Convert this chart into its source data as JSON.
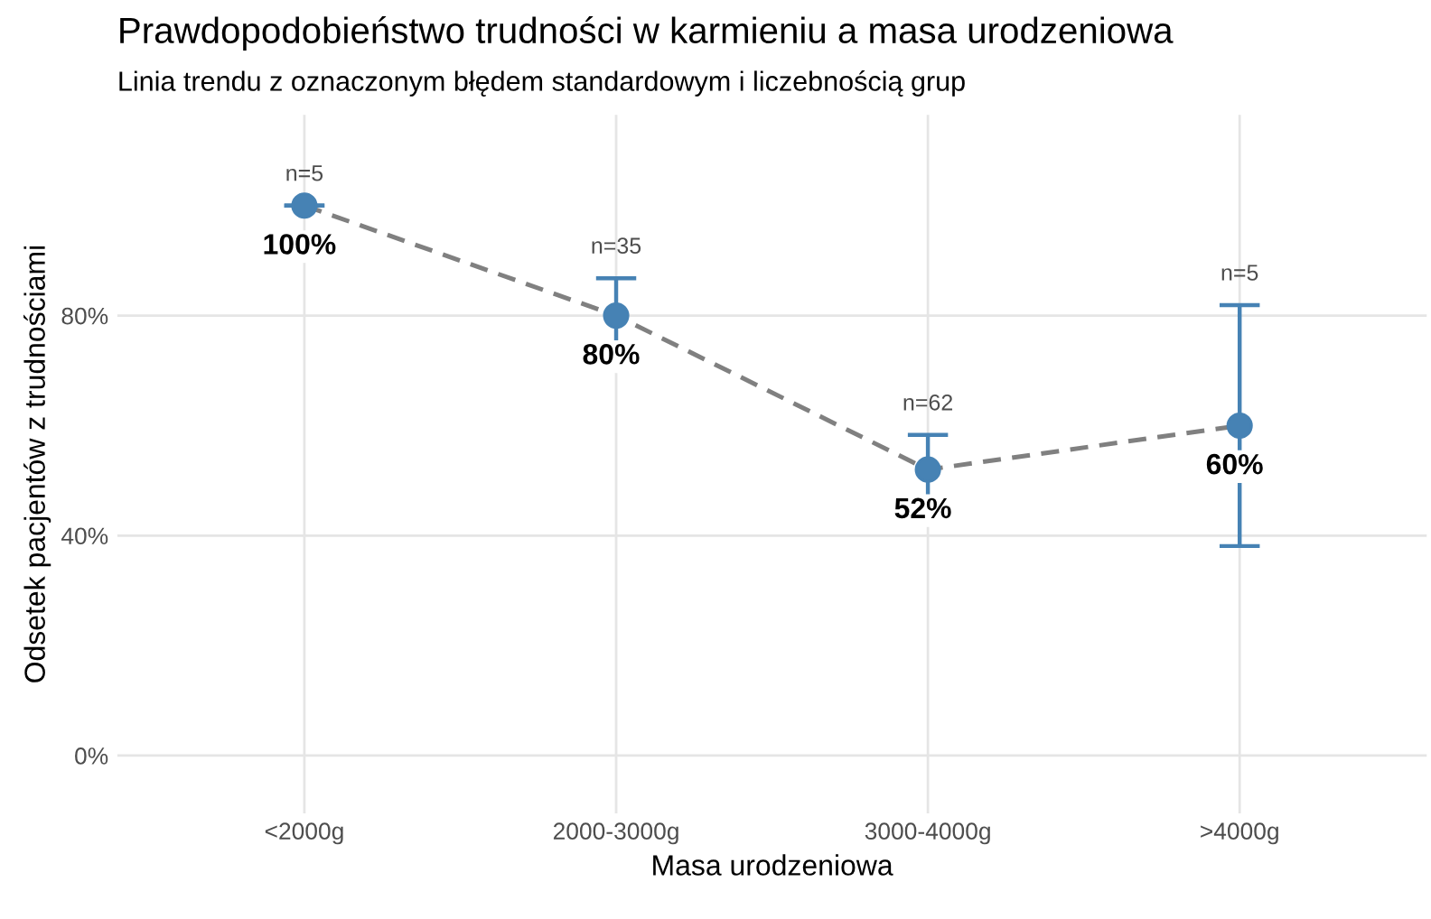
{
  "chart_data": {
    "type": "scatter",
    "title": "Prawdopodobieństwo trudności w karmieniu a masa urodzeniowa",
    "subtitle": "Linia trendu z oznaczonym błędem standardowym i liczebnością grup",
    "xlabel": "Masa urodzeniowa",
    "ylabel": "Odsetek pacjentów z trudnościami",
    "categories": [
      "<2000g",
      "2000-3000g",
      "3000-4000g",
      ">4000g"
    ],
    "series": [
      {
        "type": "line",
        "color": "#808080",
        "line_style": "dashed",
        "values": [
          100,
          80,
          52,
          60
        ]
      },
      {
        "color": "#4682b4",
        "marker": "circle",
        "values": [
          100,
          80,
          52,
          60
        ],
        "errors": [
          0,
          6.8,
          6.3,
          21.9
        ],
        "value_labels": [
          "100%",
          "80%",
          "52%",
          "60%"
        ]
      }
    ],
    "annotations": [
      {
        "text": "n=5",
        "x": "<2000g",
        "y": 100
      },
      {
        "text": "n=35",
        "x": "2000-3000g",
        "y": 86.8
      },
      {
        "text": "n=62",
        "x": "3000-4000g",
        "y": 58.3
      },
      {
        "text": "n=5",
        "x": ">4000g",
        "y": 81.9
      }
    ],
    "ylim": [
      -10.5,
      116.5
    ],
    "yticks": [
      {
        "value": 0,
        "label": "0%"
      },
      {
        "value": 40,
        "label": "40%"
      },
      {
        "value": 80,
        "label": "80%"
      }
    ],
    "grid": true,
    "legend": false
  }
}
